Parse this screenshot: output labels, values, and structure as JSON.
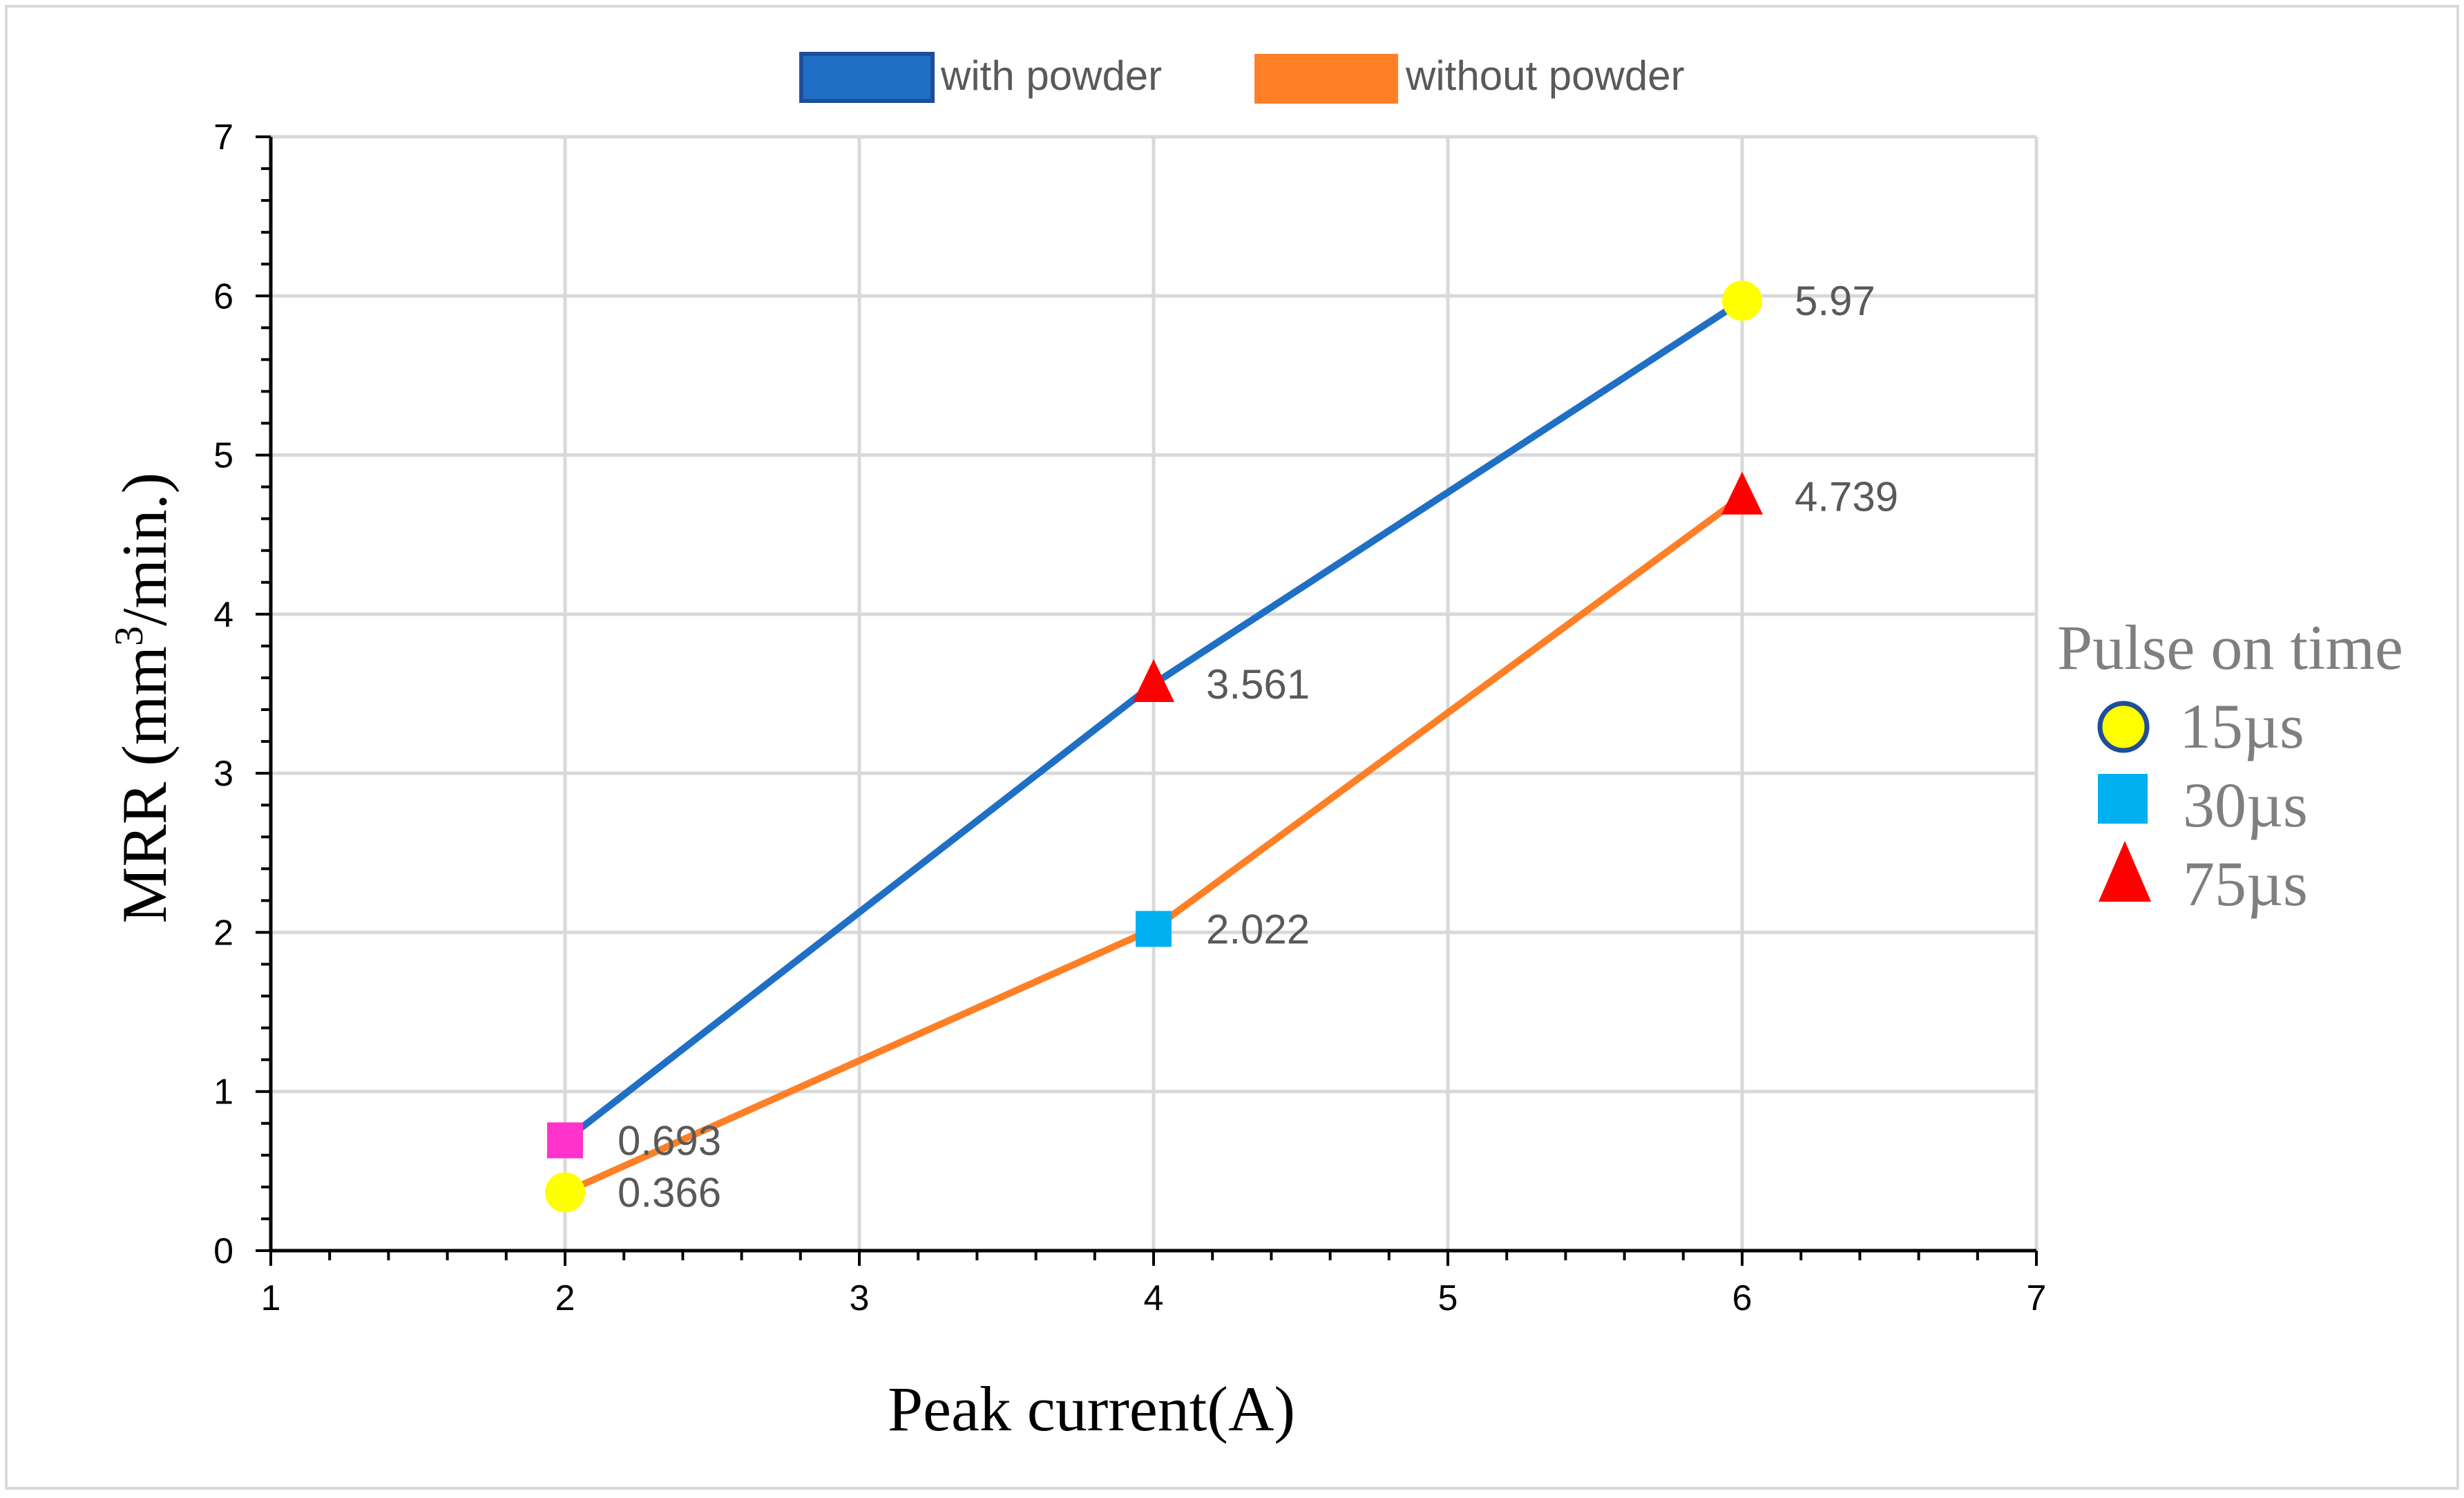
{
  "chart_data": {
    "type": "line",
    "title": "",
    "xlabel": "Peak current(A)",
    "ylabel": "MRR (mm³/min.)",
    "ylabel_parts": {
      "pre": "MRR (mm",
      "sup": "3",
      "post": "/min.)"
    },
    "xlim": [
      1,
      7
    ],
    "ylim": [
      0,
      7
    ],
    "xticks": [
      1,
      2,
      3,
      4,
      5,
      6,
      7
    ],
    "yticks": [
      0,
      1,
      2,
      3,
      4,
      5,
      6,
      7
    ],
    "grid": true,
    "legend_position": "top",
    "series": [
      {
        "name": "with powder",
        "color": "#1f6fc5",
        "border": "#1f4e99",
        "points": [
          {
            "x": 2,
            "y": 0.693,
            "label": "0.693",
            "marker": "square",
            "marker_color": "#ff33cc"
          },
          {
            "x": 4,
            "y": 3.561,
            "label": "3.561",
            "marker": "triangle",
            "marker_color": "#ff0000"
          },
          {
            "x": 6,
            "y": 5.97,
            "label": "5.97",
            "marker": "circle",
            "marker_color": "#ffff00"
          }
        ]
      },
      {
        "name": "without powder",
        "color": "#ff7f27",
        "border": "#ff7f27",
        "points": [
          {
            "x": 2,
            "y": 0.366,
            "label": "0.366",
            "marker": "circle",
            "marker_color": "#ffff00"
          },
          {
            "x": 4,
            "y": 2.022,
            "label": "2.022",
            "marker": "square",
            "marker_color": "#00b0f0"
          },
          {
            "x": 6,
            "y": 4.739,
            "label": "4.739",
            "marker": "triangle",
            "marker_color": "#ff0000"
          }
        ]
      }
    ],
    "marker_legend": {
      "title": "Pulse on time",
      "items": [
        {
          "label": "15µs",
          "marker": "circle",
          "color": "#ffff00",
          "border": "#1f4e99"
        },
        {
          "label": "30µs",
          "marker": "square",
          "color": "#00b0f0"
        },
        {
          "label": "75µs",
          "marker": "triangle",
          "color": "#ff0000"
        }
      ]
    }
  }
}
